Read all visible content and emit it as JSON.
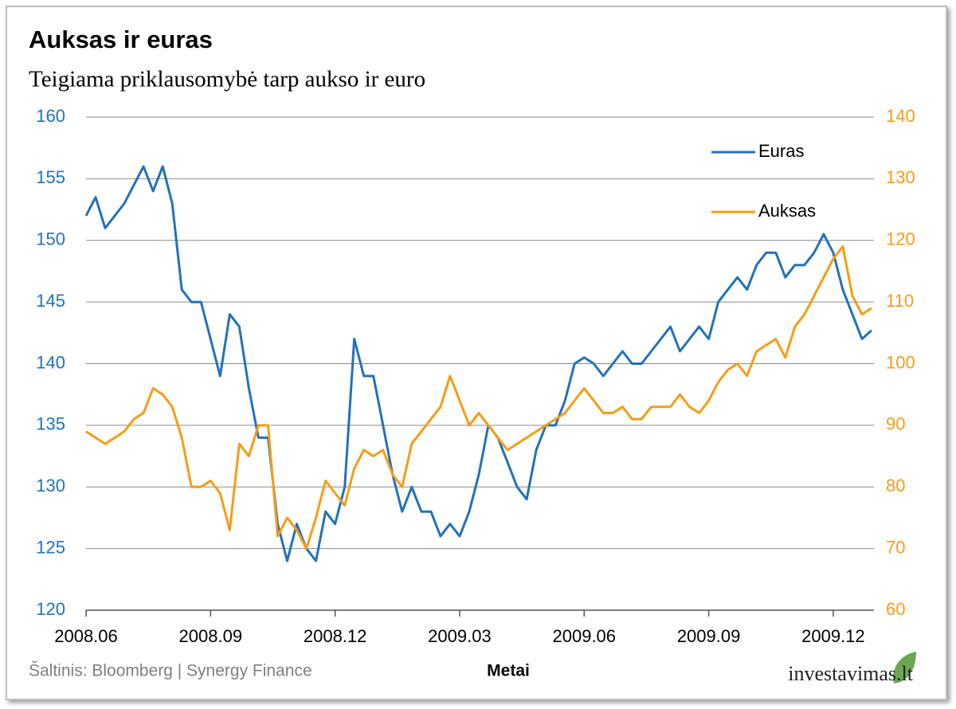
{
  "chart_data": {
    "type": "line",
    "title": "Auksas ir euras",
    "subtitle": "Teigiama priklausomybė tarp aukso ir euro",
    "x_label": "Metai",
    "source": "Šaltinis: Bloomberg | Synergy Finance",
    "brand": "investavimas.lt",
    "categories": [
      "2008.06",
      null,
      null,
      null,
      null,
      null,
      null,
      null,
      null,
      null,
      null,
      null,
      null,
      "2008.09",
      null,
      null,
      null,
      null,
      null,
      null,
      null,
      null,
      null,
      null,
      null,
      null,
      "2008.12",
      null,
      null,
      null,
      null,
      null,
      null,
      null,
      null,
      null,
      null,
      null,
      null,
      "2009.03",
      null,
      null,
      null,
      null,
      null,
      null,
      null,
      null,
      null,
      null,
      null,
      null,
      "2009.06",
      null,
      null,
      null,
      null,
      null,
      null,
      null,
      null,
      null,
      null,
      null,
      null,
      "2009.09",
      null,
      null,
      null,
      null,
      null,
      null,
      null,
      null,
      null,
      null,
      null,
      null,
      "2009.12",
      null,
      null,
      null,
      null
    ],
    "series": [
      {
        "name": "Euras",
        "color": "#2272b9",
        "values": [
          152,
          153.5,
          151,
          152,
          153,
          154.5,
          156,
          154,
          156,
          153,
          146,
          145,
          145,
          142,
          139,
          144,
          143,
          138,
          134,
          134,
          127,
          124,
          127,
          125,
          124,
          128,
          127,
          130,
          142,
          139,
          139,
          135,
          131,
          128,
          130,
          128,
          128,
          126,
          127,
          126,
          128,
          131,
          135,
          134,
          132,
          130,
          129,
          133,
          135,
          135,
          137,
          140,
          140.5,
          140,
          139,
          140,
          141,
          140,
          140,
          141,
          142,
          143,
          141,
          142,
          143,
          142,
          145,
          146,
          147,
          146,
          148,
          149,
          149,
          147,
          148,
          148,
          149,
          150.5,
          149,
          146,
          144,
          142,
          142.7
        ]
      },
      {
        "name": "Auksas",
        "color": "#f59d17",
        "axis": "y2",
        "values": [
          89,
          88,
          87,
          88,
          89,
          91,
          92,
          96,
          95,
          93,
          88,
          80,
          80,
          81,
          79,
          73,
          87,
          85,
          90,
          90,
          72,
          75,
          73,
          70,
          75,
          81,
          79,
          77,
          83,
          86,
          85,
          86,
          82,
          80,
          87,
          89,
          91,
          93,
          98,
          94,
          90,
          92,
          90,
          88,
          86,
          87,
          88,
          89,
          90,
          91,
          92,
          94,
          96,
          94,
          92,
          92,
          93,
          91,
          91,
          93,
          93,
          93,
          95,
          93,
          92,
          94,
          97,
          99,
          100,
          98,
          102,
          103,
          104,
          101,
          106,
          108,
          111,
          114,
          117,
          119,
          111,
          108,
          109
        ]
      }
    ],
    "ylim": [
      120,
      160
    ],
    "yticks": [
      120,
      125,
      130,
      135,
      140,
      145,
      150,
      155,
      160
    ],
    "y2lim": [
      60,
      140
    ],
    "y2ticks": [
      60,
      70,
      80,
      90,
      100,
      110,
      120,
      130,
      140
    ],
    "grid": true,
    "legend": "upper right"
  }
}
